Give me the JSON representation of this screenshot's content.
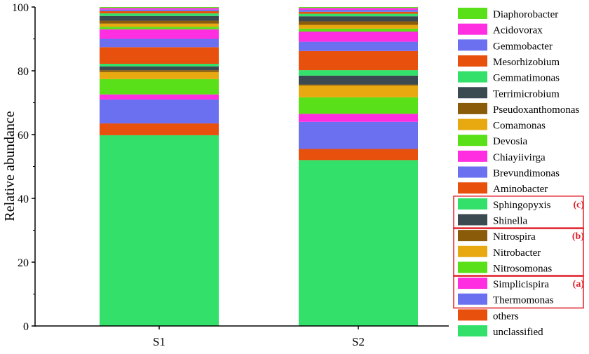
{
  "chart_data": {
    "type": "bar",
    "stacked": true,
    "categories": [
      "S1",
      "S2"
    ],
    "ylabel": "Relative abundance",
    "xlabel": "",
    "ylim": [
      0,
      100
    ],
    "yticks": [
      "0",
      "20",
      "40",
      "60",
      "80",
      "100"
    ],
    "grid": false,
    "legend_position": "right",
    "series": [
      {
        "name": "unclassified",
        "color": "#33e06a",
        "values": [
          59.8,
          52.0
        ]
      },
      {
        "name": "others",
        "color": "#e8500e",
        "values": [
          3.7,
          3.5
        ]
      },
      {
        "name": "Thermomonas",
        "color": "#6a70f0",
        "values": [
          7.5,
          8.5
        ]
      },
      {
        "name": "Simplicispira",
        "color": "#ff2ee0",
        "values": [
          1.6,
          2.5
        ]
      },
      {
        "name": "Nitrosomonas",
        "color": "#5ae018",
        "values": [
          4.8,
          5.2
        ]
      },
      {
        "name": "Nitrobacter",
        "color": "#e8a810",
        "values": [
          2.2,
          3.7
        ]
      },
      {
        "name": "Nitrospira",
        "color": "#8a5c0a",
        "values": [
          0.6,
          0.3
        ]
      },
      {
        "name": "Shinella",
        "color": "#3a4a50",
        "values": [
          1.2,
          2.8
        ]
      },
      {
        "name": "Sphingopyxis",
        "color": "#33e06a",
        "values": [
          0.8,
          1.7
        ]
      },
      {
        "name": "Aminobacter",
        "color": "#e8500e",
        "values": [
          5.2,
          6.0
        ]
      },
      {
        "name": "Brevundimonas",
        "color": "#6a70f0",
        "values": [
          2.6,
          2.9
        ]
      },
      {
        "name": "Chiayiivirga",
        "color": "#ff2ee0",
        "values": [
          3.0,
          3.2
        ]
      },
      {
        "name": "Devosia",
        "color": "#5ae018",
        "values": [
          0.8,
          0.9
        ]
      },
      {
        "name": "Comamonas",
        "color": "#e8a810",
        "values": [
          1.0,
          1.2
        ]
      },
      {
        "name": "Pseudoxanthomonas",
        "color": "#8a5c0a",
        "values": [
          0.9,
          1.1
        ]
      },
      {
        "name": "Terrimicrobium",
        "color": "#3a4a50",
        "values": [
          1.5,
          1.6
        ]
      },
      {
        "name": "Gemmatimonas",
        "color": "#33e06a",
        "values": [
          0.8,
          0.8
        ]
      },
      {
        "name": "Mesorhizobium",
        "color": "#e8500e",
        "values": [
          0.7,
          0.6
        ]
      },
      {
        "name": "Gemmobacter",
        "color": "#6a70f0",
        "values": [
          0.5,
          0.6
        ]
      },
      {
        "name": "Acidovorax",
        "color": "#ff2ee0",
        "values": [
          0.5,
          0.6
        ]
      },
      {
        "name": "Diaphorobacter",
        "color": "#5ae018",
        "values": [
          0.3,
          0.3
        ]
      }
    ],
    "legend_groups": [
      {
        "label": "(c)",
        "members": [
          "Sphingopyxis",
          "Shinella"
        ],
        "color": "#e0202a"
      },
      {
        "label": "(b)",
        "members": [
          "Nitrospira",
          "Nitrobacter",
          "Nitrosomonas"
        ],
        "color": "#e0202a"
      },
      {
        "label": "(a)",
        "members": [
          "Simplicispira",
          "Thermomonas"
        ],
        "color": "#e0202a"
      }
    ]
  }
}
